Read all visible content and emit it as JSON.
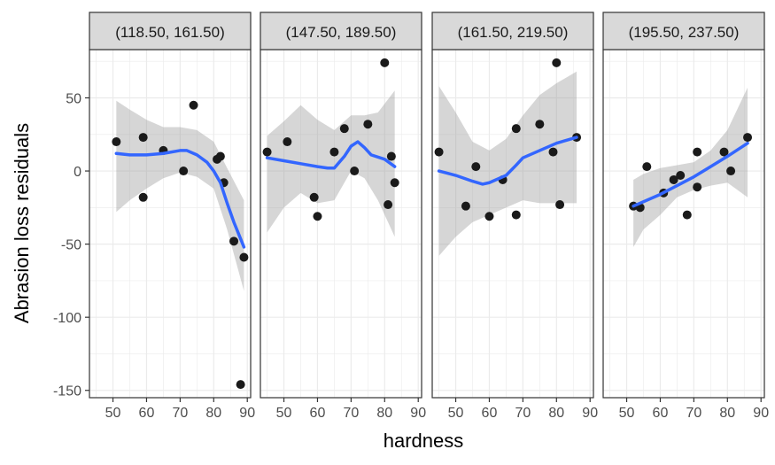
{
  "chart_data": {
    "type": "scatter",
    "title": "",
    "xlabel": "hardness",
    "ylabel": "Abrasion loss residuals",
    "xlim": [
      43,
      91
    ],
    "ylim": [
      -155,
      83
    ],
    "x_ticks": [
      50,
      60,
      70,
      80,
      90
    ],
    "y_ticks": [
      50,
      0,
      -50,
      -100,
      -150
    ],
    "grid": true,
    "smooth": {
      "method": "loess",
      "confidence_band": true
    },
    "colors": {
      "point": "#1a1a1a",
      "smooth_line": "#3366ff",
      "band": "#999999",
      "strip_fill": "#d9d9d9",
      "grid": "#ebebeb",
      "panel_border": "#333333"
    },
    "panels": [
      {
        "strip": "(118.50, 161.50)",
        "points": [
          [
            51,
            20
          ],
          [
            59,
            23
          ],
          [
            59,
            -18
          ],
          [
            65,
            14
          ],
          [
            71,
            0
          ],
          [
            74,
            45
          ],
          [
            81,
            8
          ],
          [
            82,
            10
          ],
          [
            83,
            -8
          ],
          [
            86,
            -48
          ],
          [
            89,
            -59
          ],
          [
            88,
            -146
          ]
        ],
        "smooth": [
          [
            51,
            12
          ],
          [
            55,
            11
          ],
          [
            60,
            11
          ],
          [
            65,
            12
          ],
          [
            70,
            14
          ],
          [
            72,
            14
          ],
          [
            75,
            11
          ],
          [
            78,
            6
          ],
          [
            80,
            0
          ],
          [
            82,
            -8
          ],
          [
            84,
            -22
          ],
          [
            86,
            -35
          ],
          [
            89,
            -52
          ]
        ],
        "band_upper": [
          [
            51,
            48
          ],
          [
            55,
            42
          ],
          [
            60,
            35
          ],
          [
            65,
            30
          ],
          [
            70,
            30
          ],
          [
            75,
            28
          ],
          [
            80,
            20
          ],
          [
            84,
            2
          ],
          [
            89,
            -20
          ]
        ],
        "band_lower": [
          [
            51,
            -28
          ],
          [
            55,
            -20
          ],
          [
            60,
            -12
          ],
          [
            65,
            -5
          ],
          [
            70,
            -1
          ],
          [
            75,
            -4
          ],
          [
            80,
            -12
          ],
          [
            84,
            -40
          ],
          [
            89,
            -82
          ]
        ]
      },
      {
        "strip": "(147.50, 189.50)",
        "points": [
          [
            45,
            13
          ],
          [
            51,
            20
          ],
          [
            59,
            -18
          ],
          [
            60,
            -31
          ],
          [
            65,
            13
          ],
          [
            68,
            29
          ],
          [
            71,
            0
          ],
          [
            75,
            32
          ],
          [
            80,
            74
          ],
          [
            81,
            -23
          ],
          [
            82,
            10
          ],
          [
            83,
            -8
          ]
        ],
        "smooth": [
          [
            45,
            9
          ],
          [
            50,
            7
          ],
          [
            55,
            5
          ],
          [
            60,
            3
          ],
          [
            63,
            2
          ],
          [
            65,
            2
          ],
          [
            68,
            10
          ],
          [
            70,
            17
          ],
          [
            72,
            20
          ],
          [
            74,
            16
          ],
          [
            76,
            11
          ],
          [
            80,
            8
          ],
          [
            83,
            3
          ]
        ],
        "band_upper": [
          [
            45,
            24
          ],
          [
            50,
            34
          ],
          [
            55,
            45
          ],
          [
            60,
            35
          ],
          [
            65,
            28
          ],
          [
            70,
            38
          ],
          [
            74,
            38
          ],
          [
            78,
            40
          ],
          [
            83,
            55
          ]
        ],
        "band_lower": [
          [
            45,
            -42
          ],
          [
            50,
            -25
          ],
          [
            55,
            -15
          ],
          [
            60,
            -22
          ],
          [
            65,
            -20
          ],
          [
            70,
            0
          ],
          [
            74,
            -5
          ],
          [
            78,
            -20
          ],
          [
            83,
            -45
          ]
        ]
      },
      {
        "strip": "(161.50, 219.50)",
        "points": [
          [
            45,
            13
          ],
          [
            53,
            -24
          ],
          [
            56,
            3
          ],
          [
            60,
            -31
          ],
          [
            64,
            -6
          ],
          [
            68,
            29
          ],
          [
            68,
            -30
          ],
          [
            75,
            32
          ],
          [
            79,
            13
          ],
          [
            80,
            74
          ],
          [
            81,
            -23
          ],
          [
            86,
            23
          ]
        ],
        "smooth": [
          [
            45,
            0
          ],
          [
            50,
            -3
          ],
          [
            55,
            -7
          ],
          [
            58,
            -9
          ],
          [
            60,
            -8
          ],
          [
            65,
            -3
          ],
          [
            68,
            4
          ],
          [
            70,
            9
          ],
          [
            75,
            14
          ],
          [
            80,
            19
          ],
          [
            86,
            23
          ]
        ],
        "band_upper": [
          [
            45,
            58
          ],
          [
            50,
            40
          ],
          [
            55,
            20
          ],
          [
            60,
            14
          ],
          [
            65,
            22
          ],
          [
            70,
            38
          ],
          [
            75,
            52
          ],
          [
            80,
            60
          ],
          [
            86,
            68
          ]
        ],
        "band_lower": [
          [
            45,
            -58
          ],
          [
            50,
            -45
          ],
          [
            55,
            -35
          ],
          [
            60,
            -30
          ],
          [
            65,
            -25
          ],
          [
            70,
            -20
          ],
          [
            75,
            -22
          ],
          [
            80,
            -22
          ],
          [
            86,
            -22
          ]
        ]
      },
      {
        "strip": "(195.50, 237.50)",
        "points": [
          [
            52,
            -24
          ],
          [
            54,
            -25
          ],
          [
            56,
            3
          ],
          [
            61,
            -15
          ],
          [
            64,
            -6
          ],
          [
            66,
            -3
          ],
          [
            68,
            -30
          ],
          [
            71,
            -11
          ],
          [
            71,
            13
          ],
          [
            79,
            13
          ],
          [
            81,
            0
          ],
          [
            86,
            23
          ]
        ],
        "smooth": [
          [
            52,
            -24
          ],
          [
            60,
            -16
          ],
          [
            65,
            -10
          ],
          [
            70,
            -4
          ],
          [
            75,
            3
          ],
          [
            80,
            10
          ],
          [
            86,
            19
          ]
        ],
        "band_upper": [
          [
            52,
            -6
          ],
          [
            55,
            -2
          ],
          [
            60,
            2
          ],
          [
            65,
            4
          ],
          [
            70,
            6
          ],
          [
            75,
            14
          ],
          [
            80,
            28
          ],
          [
            86,
            57
          ]
        ],
        "band_lower": [
          [
            52,
            -52
          ],
          [
            55,
            -40
          ],
          [
            60,
            -30
          ],
          [
            65,
            -18
          ],
          [
            70,
            -13
          ],
          [
            75,
            -10
          ],
          [
            80,
            -8
          ],
          [
            86,
            -18
          ]
        ]
      }
    ]
  }
}
